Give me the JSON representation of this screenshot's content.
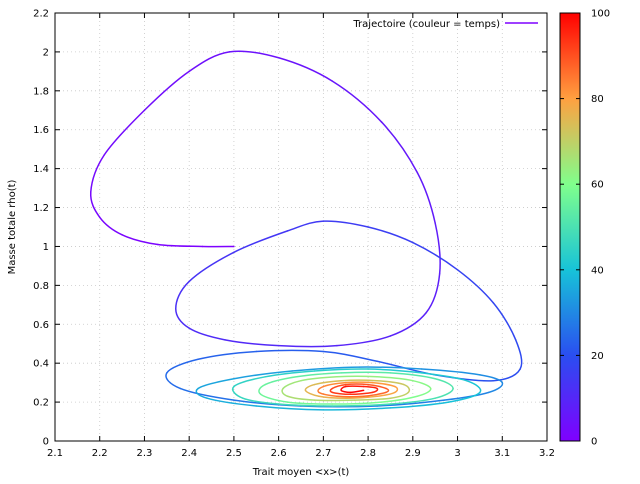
{
  "chart_data": {
    "type": "line",
    "xlabel": "Trait moyen <x>(t)",
    "ylabel": "Masse totale rho(t)",
    "xlim": [
      2.1,
      3.2
    ],
    "ylim": [
      0,
      2.2
    ],
    "xticks": [
      "2.1",
      "2.2",
      "2.3",
      "2.4",
      "2.5",
      "2.6",
      "2.7",
      "2.8",
      "2.9",
      "3",
      "3.1",
      "3.2"
    ],
    "yticks": [
      "0",
      "0.2",
      "0.4",
      "0.6",
      "0.8",
      "1",
      "1.2",
      "1.4",
      "1.6",
      "1.8",
      "2",
      "2.2"
    ],
    "grid": true,
    "legend": {
      "position": "top-right",
      "entries": [
        "Trajectoire (couleur = temps)"
      ]
    },
    "colorbar": {
      "label_position": "right",
      "range": [
        0,
        100
      ],
      "ticks": [
        "0",
        "20",
        "40",
        "60",
        "80",
        "100"
      ],
      "colormap": "rainbow"
    },
    "series": [
      {
        "name": "Trajectoire (couleur = temps)",
        "color_encodes": "time",
        "t_range": [
          0,
          100
        ],
        "points": [
          [
            2.5,
            1.0
          ],
          [
            2.43,
            1.0
          ],
          [
            2.33,
            1.01
          ],
          [
            2.25,
            1.06
          ],
          [
            2.2,
            1.15
          ],
          [
            2.18,
            1.28
          ],
          [
            2.21,
            1.47
          ],
          [
            2.3,
            1.7
          ],
          [
            2.4,
            1.9
          ],
          [
            2.49,
            2.0
          ],
          [
            2.6,
            1.97
          ],
          [
            2.72,
            1.85
          ],
          [
            2.83,
            1.64
          ],
          [
            2.91,
            1.38
          ],
          [
            2.95,
            1.12
          ],
          [
            2.96,
            0.86
          ],
          [
            2.93,
            0.66
          ],
          [
            2.85,
            0.54
          ],
          [
            2.73,
            0.49
          ],
          [
            2.6,
            0.49
          ],
          [
            2.48,
            0.52
          ],
          [
            2.4,
            0.58
          ],
          [
            2.37,
            0.68
          ],
          [
            2.4,
            0.82
          ],
          [
            2.5,
            0.97
          ],
          [
            2.62,
            1.08
          ],
          [
            2.7,
            1.13
          ],
          [
            2.8,
            1.1
          ],
          [
            2.9,
            1.02
          ],
          [
            3.0,
            0.88
          ],
          [
            3.08,
            0.71
          ],
          [
            3.13,
            0.52
          ],
          [
            3.14,
            0.37
          ],
          [
            3.08,
            0.31
          ],
          [
            2.95,
            0.34
          ],
          [
            2.82,
            0.41
          ],
          [
            2.7,
            0.46
          ],
          [
            2.55,
            0.46
          ],
          [
            2.42,
            0.42
          ],
          [
            2.35,
            0.35
          ],
          [
            2.38,
            0.27
          ],
          [
            2.5,
            0.21
          ],
          [
            2.65,
            0.18
          ],
          [
            2.82,
            0.18
          ],
          [
            2.97,
            0.21
          ],
          [
            3.07,
            0.25
          ],
          [
            3.1,
            0.3
          ],
          [
            3.05,
            0.34
          ],
          [
            2.92,
            0.37
          ],
          [
            2.78,
            0.38
          ],
          [
            2.63,
            0.36
          ],
          [
            2.5,
            0.32
          ],
          [
            2.42,
            0.27
          ],
          [
            2.44,
            0.22
          ],
          [
            2.55,
            0.18
          ],
          [
            2.7,
            0.16
          ],
          [
            2.85,
            0.17
          ],
          [
            2.98,
            0.2
          ],
          [
            3.05,
            0.25
          ],
          [
            3.02,
            0.31
          ],
          [
            2.92,
            0.35
          ],
          [
            2.8,
            0.37
          ],
          [
            2.68,
            0.36
          ],
          [
            2.57,
            0.33
          ],
          [
            2.5,
            0.28
          ],
          [
            2.52,
            0.22
          ],
          [
            2.6,
            0.19
          ],
          [
            2.72,
            0.18
          ],
          [
            2.85,
            0.19
          ],
          [
            2.95,
            0.22
          ],
          [
            2.99,
            0.27
          ],
          [
            2.95,
            0.32
          ],
          [
            2.85,
            0.35
          ],
          [
            2.74,
            0.35
          ],
          [
            2.64,
            0.33
          ],
          [
            2.57,
            0.29
          ],
          [
            2.56,
            0.24
          ],
          [
            2.62,
            0.2
          ],
          [
            2.72,
            0.19
          ],
          [
            2.83,
            0.2
          ],
          [
            2.91,
            0.23
          ],
          [
            2.94,
            0.27
          ],
          [
            2.9,
            0.31
          ],
          [
            2.82,
            0.33
          ],
          [
            2.73,
            0.33
          ],
          [
            2.65,
            0.31
          ],
          [
            2.61,
            0.27
          ],
          [
            2.62,
            0.23
          ],
          [
            2.68,
            0.21
          ],
          [
            2.77,
            0.21
          ],
          [
            2.85,
            0.22
          ],
          [
            2.89,
            0.25
          ],
          [
            2.88,
            0.29
          ],
          [
            2.82,
            0.31
          ],
          [
            2.74,
            0.31
          ],
          [
            2.68,
            0.29
          ],
          [
            2.66,
            0.26
          ],
          [
            2.69,
            0.23
          ],
          [
            2.75,
            0.22
          ],
          [
            2.82,
            0.23
          ],
          [
            2.86,
            0.25
          ],
          [
            2.86,
            0.28
          ],
          [
            2.81,
            0.3
          ],
          [
            2.75,
            0.3
          ],
          [
            2.7,
            0.28
          ],
          [
            2.69,
            0.25
          ],
          [
            2.73,
            0.23
          ],
          [
            2.79,
            0.23
          ],
          [
            2.84,
            0.25
          ],
          [
            2.84,
            0.27
          ],
          [
            2.8,
            0.29
          ],
          [
            2.75,
            0.29
          ],
          [
            2.72,
            0.27
          ],
          [
            2.72,
            0.25
          ],
          [
            2.76,
            0.24
          ],
          [
            2.81,
            0.25
          ],
          [
            2.82,
            0.27
          ],
          [
            2.79,
            0.28
          ],
          [
            2.75,
            0.28
          ],
          [
            2.74,
            0.26
          ],
          [
            2.76,
            0.25
          ],
          [
            2.79,
            0.26
          ]
        ]
      }
    ]
  }
}
